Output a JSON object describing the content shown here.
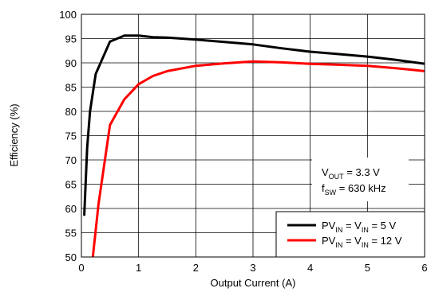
{
  "chart_data": {
    "type": "line",
    "xlabel": "Output Current (A)",
    "ylabel": "Efficiency (%)",
    "xlim": [
      0,
      6
    ],
    "ylim": [
      50,
      100
    ],
    "x_ticks": [
      "0",
      "1",
      "2",
      "3",
      "4",
      "5",
      "6"
    ],
    "y_ticks": [
      "50",
      "55",
      "60",
      "65",
      "70",
      "75",
      "80",
      "85",
      "90",
      "95",
      "100"
    ],
    "grid": true,
    "legend_position": "bottom-right",
    "annotation": {
      "line1": {
        "main": "V",
        "sub": "OUT",
        "rest": " =  3.3 V"
      },
      "line2": {
        "main": "f",
        "sub": "SW",
        "rest": " =  630 kHz"
      }
    },
    "series": [
      {
        "name": "PVIN = VIN = 5 V",
        "legend_parts": [
          "PV",
          "IN",
          " = V",
          "IN",
          " = 5 V"
        ],
        "color": "#000000",
        "x": [
          0.05,
          0.1,
          0.15,
          0.25,
          0.5,
          0.75,
          1.0,
          1.25,
          1.5,
          2.0,
          2.5,
          3.0,
          3.5,
          4.0,
          4.5,
          5.0,
          5.5,
          6.0
        ],
        "y": [
          58.7,
          72.5,
          80.0,
          87.7,
          94.4,
          95.6,
          95.6,
          95.3,
          95.2,
          94.8,
          94.3,
          93.8,
          93.0,
          92.3,
          91.8,
          91.3,
          90.6,
          89.8
        ]
      },
      {
        "name": "PVIN = VIN = 12 V",
        "legend_parts": [
          "PV",
          "IN",
          " = V",
          "IN",
          " = 12 V"
        ],
        "color": "#ff0000",
        "x": [
          0.2,
          0.3,
          0.5,
          0.75,
          1.0,
          1.25,
          1.5,
          2.0,
          2.5,
          3.0,
          3.5,
          4.0,
          4.5,
          5.0,
          5.5,
          6.0
        ],
        "y": [
          50.0,
          61.0,
          77.2,
          82.5,
          85.6,
          87.3,
          88.3,
          89.4,
          89.9,
          90.3,
          90.1,
          89.8,
          89.6,
          89.4,
          88.9,
          88.3
        ]
      }
    ]
  }
}
